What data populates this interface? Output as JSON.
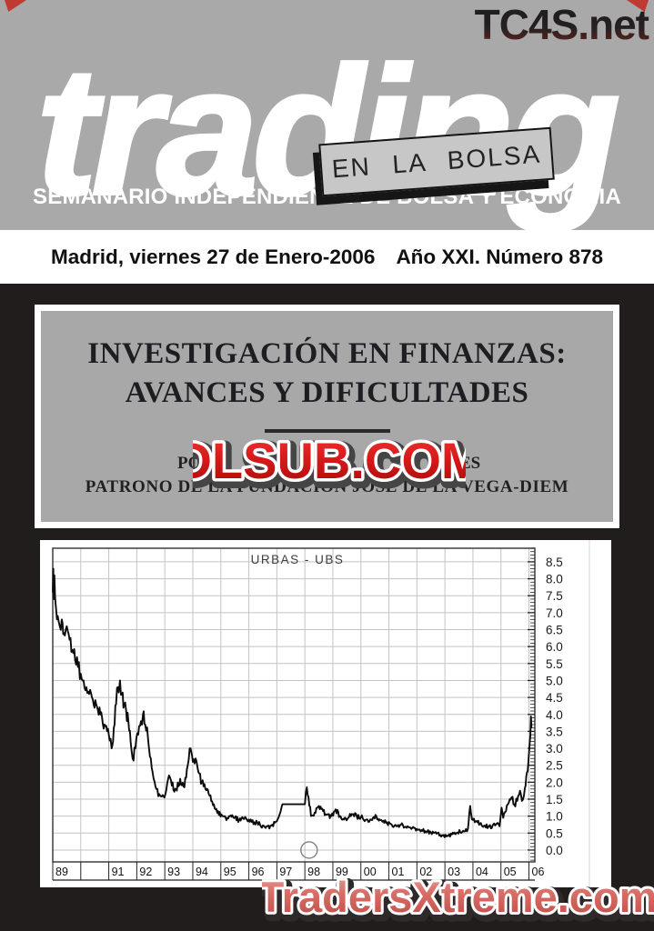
{
  "masthead": {
    "watermark_top": "TC4S.net",
    "logo": "trading",
    "tagline": "EN LA BOLSA",
    "subtitle": "SEMANARIO INDEPENDIENTE DE BOLSA Y ECONOMIA"
  },
  "date_bar": {
    "left": "Madrid, viernes 27 de Enero-2006",
    "right": "Año XXI. Número 878"
  },
  "article": {
    "title_line1": "INVESTIGACIÓN EN FINANZAS:",
    "title_line2": "AVANCES Y DIFICULTADES",
    "byline_fragment_left": "PO",
    "byline_fragment_right": "ES",
    "patrono": "PATRONO DE LA FUNDACIÓN JOSE DE LA VEGA-DIEM"
  },
  "watermarks": {
    "center": "DLSUB.COM",
    "bottom": "TradersXtreme.com"
  },
  "colors": {
    "paper_gray": "#a9a9a9",
    "box_gray": "#c7c7c7",
    "page_black": "#201d1c",
    "watermark_red": "#d41a1a",
    "watermark_salmon": "#d96f68",
    "corner_red": "#bf3a30"
  },
  "chart_data": {
    "type": "line",
    "title": "URBAS - UBS",
    "x_domain": [
      1989,
      2006.21
    ],
    "y_domain": [
      -0.35,
      8.9
    ],
    "grid": true,
    "x_tick_years": [
      1989,
      1990,
      1991,
      1992,
      1993,
      1994,
      1995,
      1996,
      1997,
      1998,
      1999,
      2000,
      2001,
      2002,
      2003,
      2004,
      2005,
      2006
    ],
    "x_tick_labels": [
      "89",
      "",
      "91",
      "92",
      "93",
      "94",
      "95",
      "96",
      "97",
      "98",
      "99",
      "00",
      "01",
      "02",
      "03",
      "04",
      "05",
      "06"
    ],
    "y_ticks": [
      0.0,
      0.5,
      1.0,
      1.5,
      2.0,
      2.5,
      3.0,
      3.5,
      4.0,
      4.5,
      5.0,
      5.5,
      6.0,
      6.5,
      7.0,
      7.5,
      8.0,
      8.5
    ],
    "y_tick_labels": [
      "0.0",
      "0.5",
      "1.0",
      "1.5",
      "2.0",
      "2.5",
      "3.0",
      "3.5",
      "4.0",
      "4.5",
      "5.0",
      "5.5",
      "6.0",
      "6.5",
      "7.0",
      "7.5",
      "8.0",
      "8.5"
    ],
    "annotation_circle": {
      "year": 1998.15,
      "value": 0.0,
      "radius_px": 9
    },
    "series": [
      {
        "name": "URBAS",
        "points": [
          [
            1989.0,
            7.6
          ],
          [
            1989.02,
            8.3
          ],
          [
            1989.04,
            7.4
          ],
          [
            1989.06,
            8.1
          ],
          [
            1989.08,
            7.5
          ],
          [
            1989.12,
            7.1
          ],
          [
            1989.18,
            6.9
          ],
          [
            1989.25,
            6.6
          ],
          [
            1989.32,
            6.8
          ],
          [
            1989.4,
            6.4
          ],
          [
            1989.5,
            6.6
          ],
          [
            1989.6,
            6.2
          ],
          [
            1989.7,
            5.9
          ],
          [
            1989.8,
            5.6
          ],
          [
            1989.9,
            5.4
          ],
          [
            1990.0,
            5.2
          ],
          [
            1990.1,
            5.0
          ],
          [
            1990.2,
            4.8
          ],
          [
            1990.3,
            4.6
          ],
          [
            1990.4,
            4.5
          ],
          [
            1990.55,
            4.3
          ],
          [
            1990.7,
            4.0
          ],
          [
            1990.85,
            3.7
          ],
          [
            1991.0,
            3.4
          ],
          [
            1991.1,
            3.0
          ],
          [
            1991.18,
            3.6
          ],
          [
            1991.26,
            4.3
          ],
          [
            1991.33,
            4.8
          ],
          [
            1991.4,
            5.0
          ],
          [
            1991.47,
            4.6
          ],
          [
            1991.55,
            4.3
          ],
          [
            1991.62,
            4.1
          ],
          [
            1991.7,
            3.8
          ],
          [
            1991.78,
            3.2
          ],
          [
            1991.85,
            2.7
          ],
          [
            1991.95,
            3.0
          ],
          [
            1992.05,
            3.4
          ],
          [
            1992.15,
            3.8
          ],
          [
            1992.22,
            4.0
          ],
          [
            1992.3,
            3.7
          ],
          [
            1992.4,
            3.3
          ],
          [
            1992.5,
            2.7
          ],
          [
            1992.6,
            2.1
          ],
          [
            1992.7,
            1.8
          ],
          [
            1992.8,
            1.65
          ],
          [
            1992.95,
            1.6
          ],
          [
            1993.05,
            1.75
          ],
          [
            1993.15,
            2.2
          ],
          [
            1993.25,
            1.9
          ],
          [
            1993.4,
            1.8
          ],
          [
            1993.55,
            2.1
          ],
          [
            1993.7,
            1.85
          ],
          [
            1993.82,
            2.5
          ],
          [
            1993.92,
            3.0
          ],
          [
            1994.0,
            2.6
          ],
          [
            1994.1,
            2.7
          ],
          [
            1994.2,
            2.3
          ],
          [
            1994.32,
            2.0
          ],
          [
            1994.45,
            1.8
          ],
          [
            1994.6,
            1.6
          ],
          [
            1994.75,
            1.35
          ],
          [
            1994.9,
            1.15
          ],
          [
            1995.05,
            1.0
          ],
          [
            1995.2,
            0.88
          ],
          [
            1995.35,
            1.02
          ],
          [
            1995.5,
            0.95
          ],
          [
            1995.65,
            0.88
          ],
          [
            1995.8,
            0.92
          ],
          [
            1996.0,
            0.9
          ],
          [
            1996.2,
            0.82
          ],
          [
            1996.4,
            0.75
          ],
          [
            1996.6,
            0.65
          ],
          [
            1996.8,
            0.72
          ],
          [
            1997.0,
            0.85
          ],
          [
            1997.1,
            1.05
          ],
          [
            1997.2,
            1.35
          ],
          [
            1997.3,
            1.35
          ],
          [
            1998.0,
            1.35
          ],
          [
            1998.07,
            1.85
          ],
          [
            1998.13,
            1.55
          ],
          [
            1998.22,
            1.0
          ],
          [
            1998.35,
            1.1
          ],
          [
            1998.5,
            1.3
          ],
          [
            1998.65,
            1.15
          ],
          [
            1998.8,
            1.05
          ],
          [
            1998.95,
            1.0
          ],
          [
            1999.1,
            1.2
          ],
          [
            1999.25,
            1.0
          ],
          [
            1999.4,
            0.9
          ],
          [
            1999.55,
            0.95
          ],
          [
            1999.7,
            1.05
          ],
          [
            1999.85,
            1.0
          ],
          [
            2000.0,
            0.97
          ],
          [
            2000.2,
            0.9
          ],
          [
            2000.4,
            0.88
          ],
          [
            2000.55,
            1.0
          ],
          [
            2000.7,
            0.88
          ],
          [
            2000.9,
            0.8
          ],
          [
            2001.1,
            0.75
          ],
          [
            2001.3,
            0.7
          ],
          [
            2001.5,
            0.73
          ],
          [
            2001.7,
            0.68
          ],
          [
            2001.9,
            0.65
          ],
          [
            2002.1,
            0.6
          ],
          [
            2002.3,
            0.56
          ],
          [
            2002.5,
            0.52
          ],
          [
            2002.7,
            0.48
          ],
          [
            2002.9,
            0.44
          ],
          [
            2003.05,
            0.4
          ],
          [
            2003.25,
            0.46
          ],
          [
            2003.45,
            0.52
          ],
          [
            2003.65,
            0.57
          ],
          [
            2003.82,
            0.62
          ],
          [
            2003.9,
            1.3
          ],
          [
            2003.97,
            0.9
          ],
          [
            2004.1,
            0.85
          ],
          [
            2004.25,
            0.78
          ],
          [
            2004.4,
            0.72
          ],
          [
            2004.55,
            0.68
          ],
          [
            2004.7,
            0.72
          ],
          [
            2004.85,
            0.78
          ],
          [
            2004.95,
            0.7
          ],
          [
            2005.02,
            1.25
          ],
          [
            2005.08,
            0.95
          ],
          [
            2005.18,
            1.15
          ],
          [
            2005.28,
            1.4
          ],
          [
            2005.38,
            1.55
          ],
          [
            2005.48,
            1.35
          ],
          [
            2005.58,
            1.45
          ],
          [
            2005.68,
            1.75
          ],
          [
            2005.75,
            1.45
          ],
          [
            2005.82,
            1.6
          ],
          [
            2005.88,
            1.9
          ],
          [
            2005.93,
            2.3
          ],
          [
            2005.98,
            2.6
          ],
          [
            2006.03,
            3.2
          ],
          [
            2006.07,
            3.94
          ],
          [
            2006.09,
            3.6
          ]
        ]
      }
    ]
  }
}
